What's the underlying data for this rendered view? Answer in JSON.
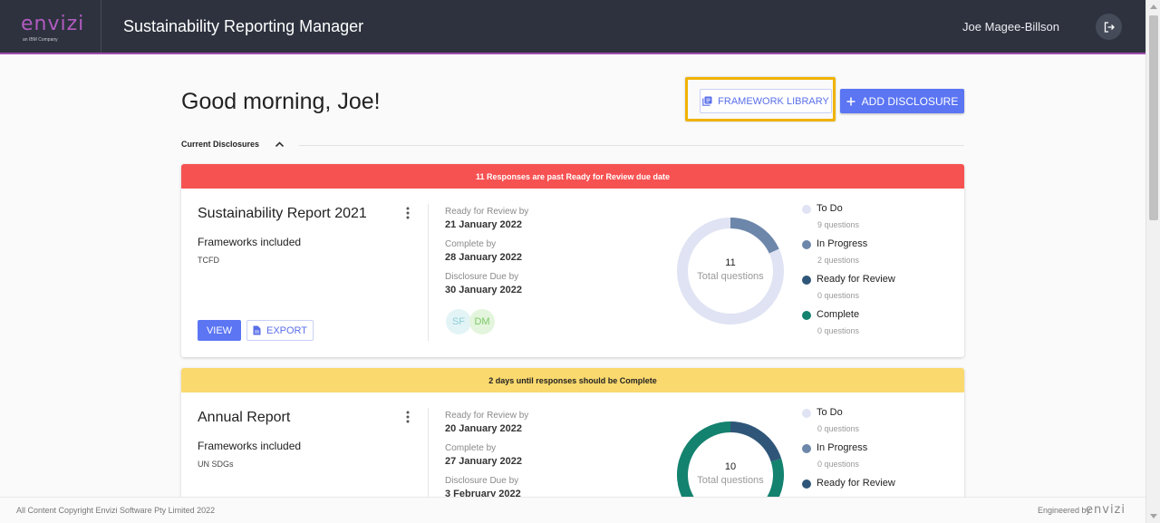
{
  "header": {
    "logo": "envizi",
    "logo_sub": "an IBM Company",
    "app_title": "Sustainability Reporting Manager",
    "user_name": "Joe Magee-Billson"
  },
  "greeting": "Good morning, Joe!",
  "toolbar": {
    "framework_library_label": "FRAMEWORK LIBRARY",
    "add_disclosure_label": "ADD DISCLOSURE"
  },
  "section": {
    "label": "Current Disclosures"
  },
  "legend_labels": {
    "todo": "To Do",
    "in_progress": "In Progress",
    "ready": "Ready for Review",
    "complete": "Complete"
  },
  "colors": {
    "todo": "#dfe3f3",
    "in_progress": "#6d87aa",
    "ready": "#2f5678",
    "complete": "#13826e",
    "banner_red": "#f75252",
    "banner_yellow": "#fad96e",
    "accent": "#5b75f3"
  },
  "cards": [
    {
      "banner": "11 Responses are past Ready for Review due date",
      "title": "Sustainability Report 2021",
      "frameworks_label": "Frameworks included",
      "frameworks": "TCFD",
      "dates": [
        {
          "label": "Ready for Review by",
          "value": "21 January 2022"
        },
        {
          "label": "Complete by",
          "value": "28 January 2022"
        },
        {
          "label": "Disclosure Due by",
          "value": "30 January 2022"
        }
      ],
      "avatars": [
        "SF",
        "DM"
      ],
      "view_label": "VIEW",
      "export_label": "EXPORT",
      "total": "11",
      "total_label": "Total questions",
      "counts": {
        "todo": "9 questions",
        "in_progress": "2 questions",
        "ready": "0 questions",
        "complete": "0 questions"
      },
      "values": {
        "todo": 9,
        "in_progress": 2,
        "ready": 0,
        "complete": 0
      }
    },
    {
      "banner": "2 days until responses should be Complete",
      "title": "Annual Report",
      "frameworks_label": "Frameworks included",
      "frameworks": "UN SDGs",
      "dates": [
        {
          "label": "Ready for Review by",
          "value": "20 January 2022"
        },
        {
          "label": "Complete by",
          "value": "27 January 2022"
        },
        {
          "label": "Disclosure Due by",
          "value": "3 February 2022"
        }
      ],
      "total": "10",
      "total_label": "Total questions",
      "counts": {
        "todo": "0 questions",
        "in_progress": "0 questions"
      },
      "values": {
        "todo": 0,
        "in_progress": 0,
        "ready": 2,
        "complete": 8
      }
    }
  ],
  "footer": {
    "copyright": "All Content Copyright Envizi Software Pty Limited 2022",
    "engineered_by": "Engineered by",
    "logo": "envizi"
  }
}
